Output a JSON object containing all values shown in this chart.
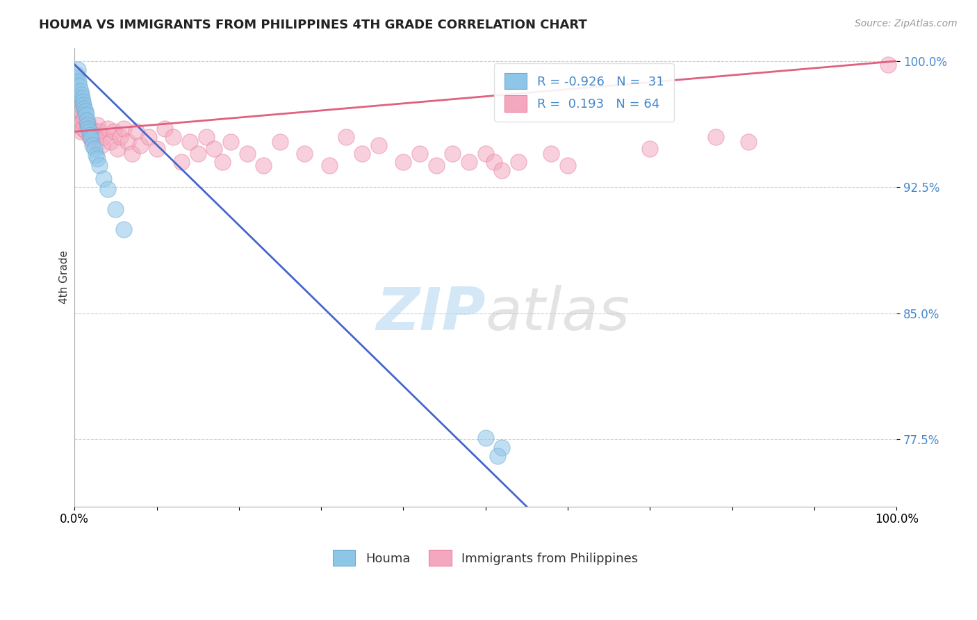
{
  "title": "HOUMA VS IMMIGRANTS FROM PHILIPPINES 4TH GRADE CORRELATION CHART",
  "source": "Source: ZipAtlas.com",
  "ylabel": "4th Grade",
  "xlim": [
    0.0,
    1.0
  ],
  "ylim": [
    0.735,
    1.008
  ],
  "yticks": [
    0.775,
    0.85,
    0.925,
    1.0
  ],
  "ytick_labels": [
    "77.5%",
    "85.0%",
    "92.5%",
    "100.0%"
  ],
  "xticks": [
    0.0,
    0.1,
    0.2,
    0.3,
    0.4,
    0.5,
    0.6,
    0.7,
    0.8,
    0.9,
    1.0
  ],
  "xtick_labels": [
    "0.0%",
    "",
    "",
    "",
    "",
    "",
    "",
    "",
    "",
    "",
    "100.0%"
  ],
  "houma_color": "#8ec6e8",
  "houma_edge_color": "#6aaad4",
  "philippines_color": "#f4a8c0",
  "philippines_edge_color": "#e8809a",
  "houma_line_color": "#4466cc",
  "philippines_line_color": "#e06080",
  "houma_R": -0.926,
  "houma_N": 31,
  "philippines_R": 0.193,
  "philippines_N": 64,
  "houma_line_x0": 0.0,
  "houma_line_y0": 0.998,
  "houma_line_x1": 0.55,
  "houma_line_y1": 0.735,
  "philippines_line_x0": 0.0,
  "philippines_line_y0": 0.958,
  "philippines_line_x1": 1.0,
  "philippines_line_y1": 1.0,
  "houma_x": [
    0.002,
    0.003,
    0.004,
    0.005,
    0.006,
    0.007,
    0.008,
    0.009,
    0.01,
    0.011,
    0.012,
    0.013,
    0.014,
    0.015,
    0.016,
    0.017,
    0.018,
    0.019,
    0.02,
    0.022,
    0.024,
    0.026,
    0.028,
    0.03,
    0.035,
    0.04,
    0.05,
    0.06,
    0.5,
    0.52,
    0.515
  ],
  "houma_y": [
    0.992,
    0.99,
    0.995,
    0.988,
    0.985,
    0.982,
    0.98,
    0.978,
    0.976,
    0.974,
    0.972,
    0.97,
    0.968,
    0.965,
    0.962,
    0.96,
    0.958,
    0.956,
    0.954,
    0.95,
    0.948,
    0.944,
    0.942,
    0.938,
    0.93,
    0.924,
    0.912,
    0.9,
    0.776,
    0.77,
    0.765
  ],
  "philippines_x": [
    0.002,
    0.003,
    0.004,
    0.005,
    0.006,
    0.007,
    0.008,
    0.009,
    0.01,
    0.012,
    0.014,
    0.016,
    0.018,
    0.02,
    0.022,
    0.025,
    0.028,
    0.03,
    0.033,
    0.036,
    0.04,
    0.044,
    0.048,
    0.052,
    0.056,
    0.06,
    0.065,
    0.07,
    0.075,
    0.08,
    0.09,
    0.1,
    0.11,
    0.12,
    0.13,
    0.14,
    0.15,
    0.16,
    0.17,
    0.18,
    0.19,
    0.21,
    0.23,
    0.25,
    0.28,
    0.31,
    0.33,
    0.35,
    0.37,
    0.4,
    0.42,
    0.44,
    0.46,
    0.48,
    0.5,
    0.51,
    0.52,
    0.54,
    0.58,
    0.6,
    0.7,
    0.78,
    0.82,
    0.99
  ],
  "philippines_y": [
    0.968,
    0.972,
    0.978,
    0.962,
    0.975,
    0.958,
    0.97,
    0.964,
    0.96,
    0.966,
    0.958,
    0.964,
    0.955,
    0.96,
    0.952,
    0.956,
    0.962,
    0.958,
    0.95,
    0.955,
    0.96,
    0.952,
    0.958,
    0.948,
    0.955,
    0.96,
    0.952,
    0.945,
    0.958,
    0.95,
    0.955,
    0.948,
    0.96,
    0.955,
    0.94,
    0.952,
    0.945,
    0.955,
    0.948,
    0.94,
    0.952,
    0.945,
    0.938,
    0.952,
    0.945,
    0.938,
    0.955,
    0.945,
    0.95,
    0.94,
    0.945,
    0.938,
    0.945,
    0.94,
    0.945,
    0.94,
    0.935,
    0.94,
    0.945,
    0.938,
    0.948,
    0.955,
    0.952,
    0.998
  ],
  "watermark_zip": "ZIP",
  "watermark_atlas": "atlas",
  "marker_size": 280,
  "alpha": 0.55
}
